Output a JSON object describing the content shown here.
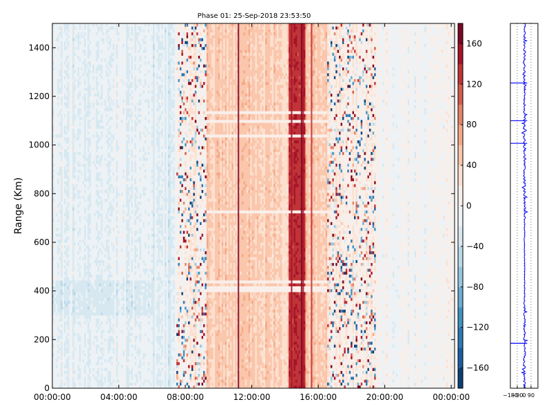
{
  "chart_data": [
    {
      "type": "heatmap",
      "title": "Phase 01: 25-Sep-2018 23:53:50",
      "ylabel": "Range (Km)",
      "xlabel": "",
      "x_tick_labels": [
        "00:00:00",
        "04:00:00",
        "08:00:00",
        "12:00:00",
        "16:00:00",
        "20:00:00",
        "00:00:00"
      ],
      "x_tick_hours": [
        0,
        4,
        8,
        12,
        16,
        20,
        24
      ],
      "xlim_hours": [
        0,
        24.2
      ],
      "y_ticks": [
        0,
        200,
        400,
        600,
        800,
        1000,
        1200,
        1400
      ],
      "ylim": [
        0,
        1500
      ],
      "colorbar": {
        "ticks": [
          160,
          120,
          80,
          40,
          0,
          -40,
          -80,
          -120,
          -160
        ],
        "tick_labels": [
          "160",
          "120",
          "80",
          "40",
          "0",
          "−40",
          "−80",
          "−120",
          "−160"
        ],
        "range": [
          -180,
          180
        ],
        "colormap": "RdBu_r",
        "levels": 18
      },
      "phase_pattern": [
        {
          "from_hour": 0,
          "to_hour": 7.5,
          "phase_deg": -15,
          "description_level": "light blue background"
        },
        {
          "from_hour": 7.5,
          "to_hour": 9.3,
          "phase_deg": 10,
          "noise": "strong"
        },
        {
          "from_hour": 9.3,
          "to_hour": 14.2,
          "phase_deg": 45
        },
        {
          "from_hour": 14.2,
          "to_hour": 15.2,
          "phase_deg": 130
        },
        {
          "from_hour": 15.2,
          "to_hour": 16.5,
          "phase_deg": 50
        },
        {
          "from_hour": 16.5,
          "to_hour": 19.5,
          "phase_deg": 15,
          "noise": "strong"
        },
        {
          "from_hour": 19.5,
          "to_hour": 24.2,
          "phase_deg": 0
        }
      ]
    },
    {
      "type": "line",
      "x_tick_labels": [
        "−180",
        "−90",
        "0",
        "90"
      ],
      "x_ticks": [
        -180,
        -90,
        0,
        90
      ],
      "xlim": [
        -180,
        180
      ],
      "ylim": [
        0,
        1500
      ],
      "color": "#0000ff",
      "grid": "vertical dotted"
    }
  ]
}
